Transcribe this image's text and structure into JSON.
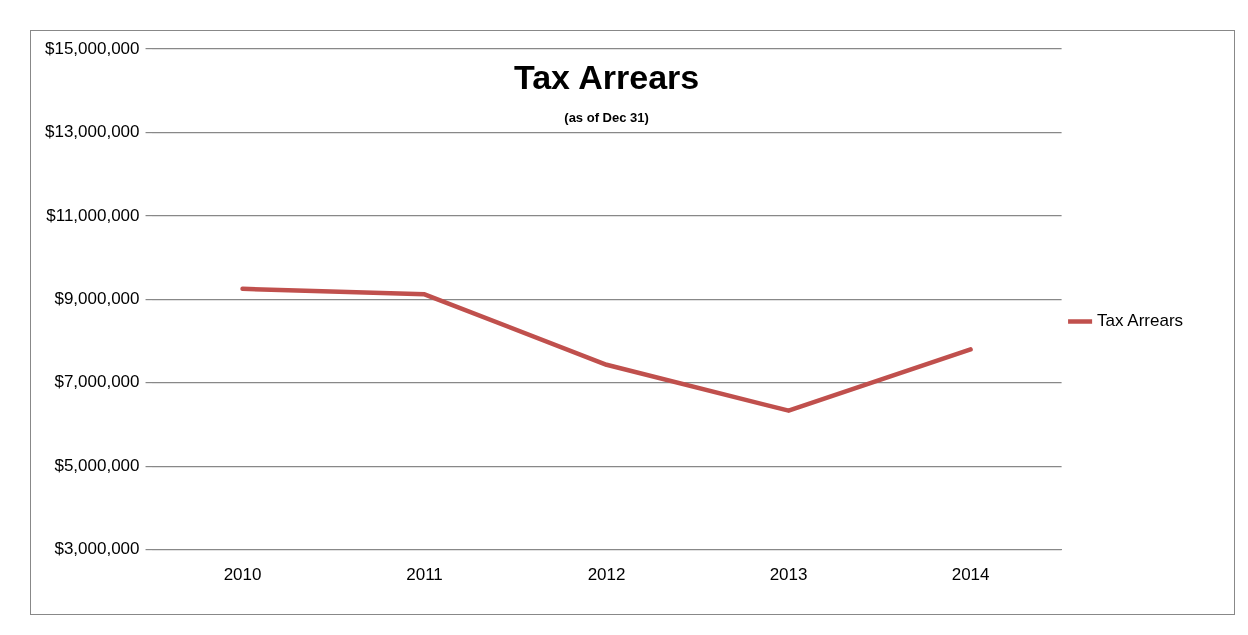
{
  "chart_data": {
    "type": "line",
    "title": "Tax Arrears",
    "subtitle": "(as of Dec 31)",
    "categories": [
      "2010",
      "2011",
      "2012",
      "2013",
      "2014"
    ],
    "series": [
      {
        "name": "Tax Arrears",
        "color": "#c0504d",
        "values": [
          9250000,
          9120000,
          7430000,
          6330000,
          7800000
        ]
      }
    ],
    "ylim": [
      3000000,
      15000000
    ],
    "yticks": [
      {
        "value": 3000000,
        "label": "$3,000,000"
      },
      {
        "value": 5000000,
        "label": "$5,000,000"
      },
      {
        "value": 7000000,
        "label": "$7,000,000"
      },
      {
        "value": 9000000,
        "label": "$9,000,000"
      },
      {
        "value": 11000000,
        "label": "$11,000,000"
      },
      {
        "value": 13000000,
        "label": "$13,000,000"
      },
      {
        "value": 15000000,
        "label": "$15,000,000"
      }
    ],
    "grid": "y",
    "legend": "right",
    "marker": "none",
    "line_style": "solid"
  }
}
